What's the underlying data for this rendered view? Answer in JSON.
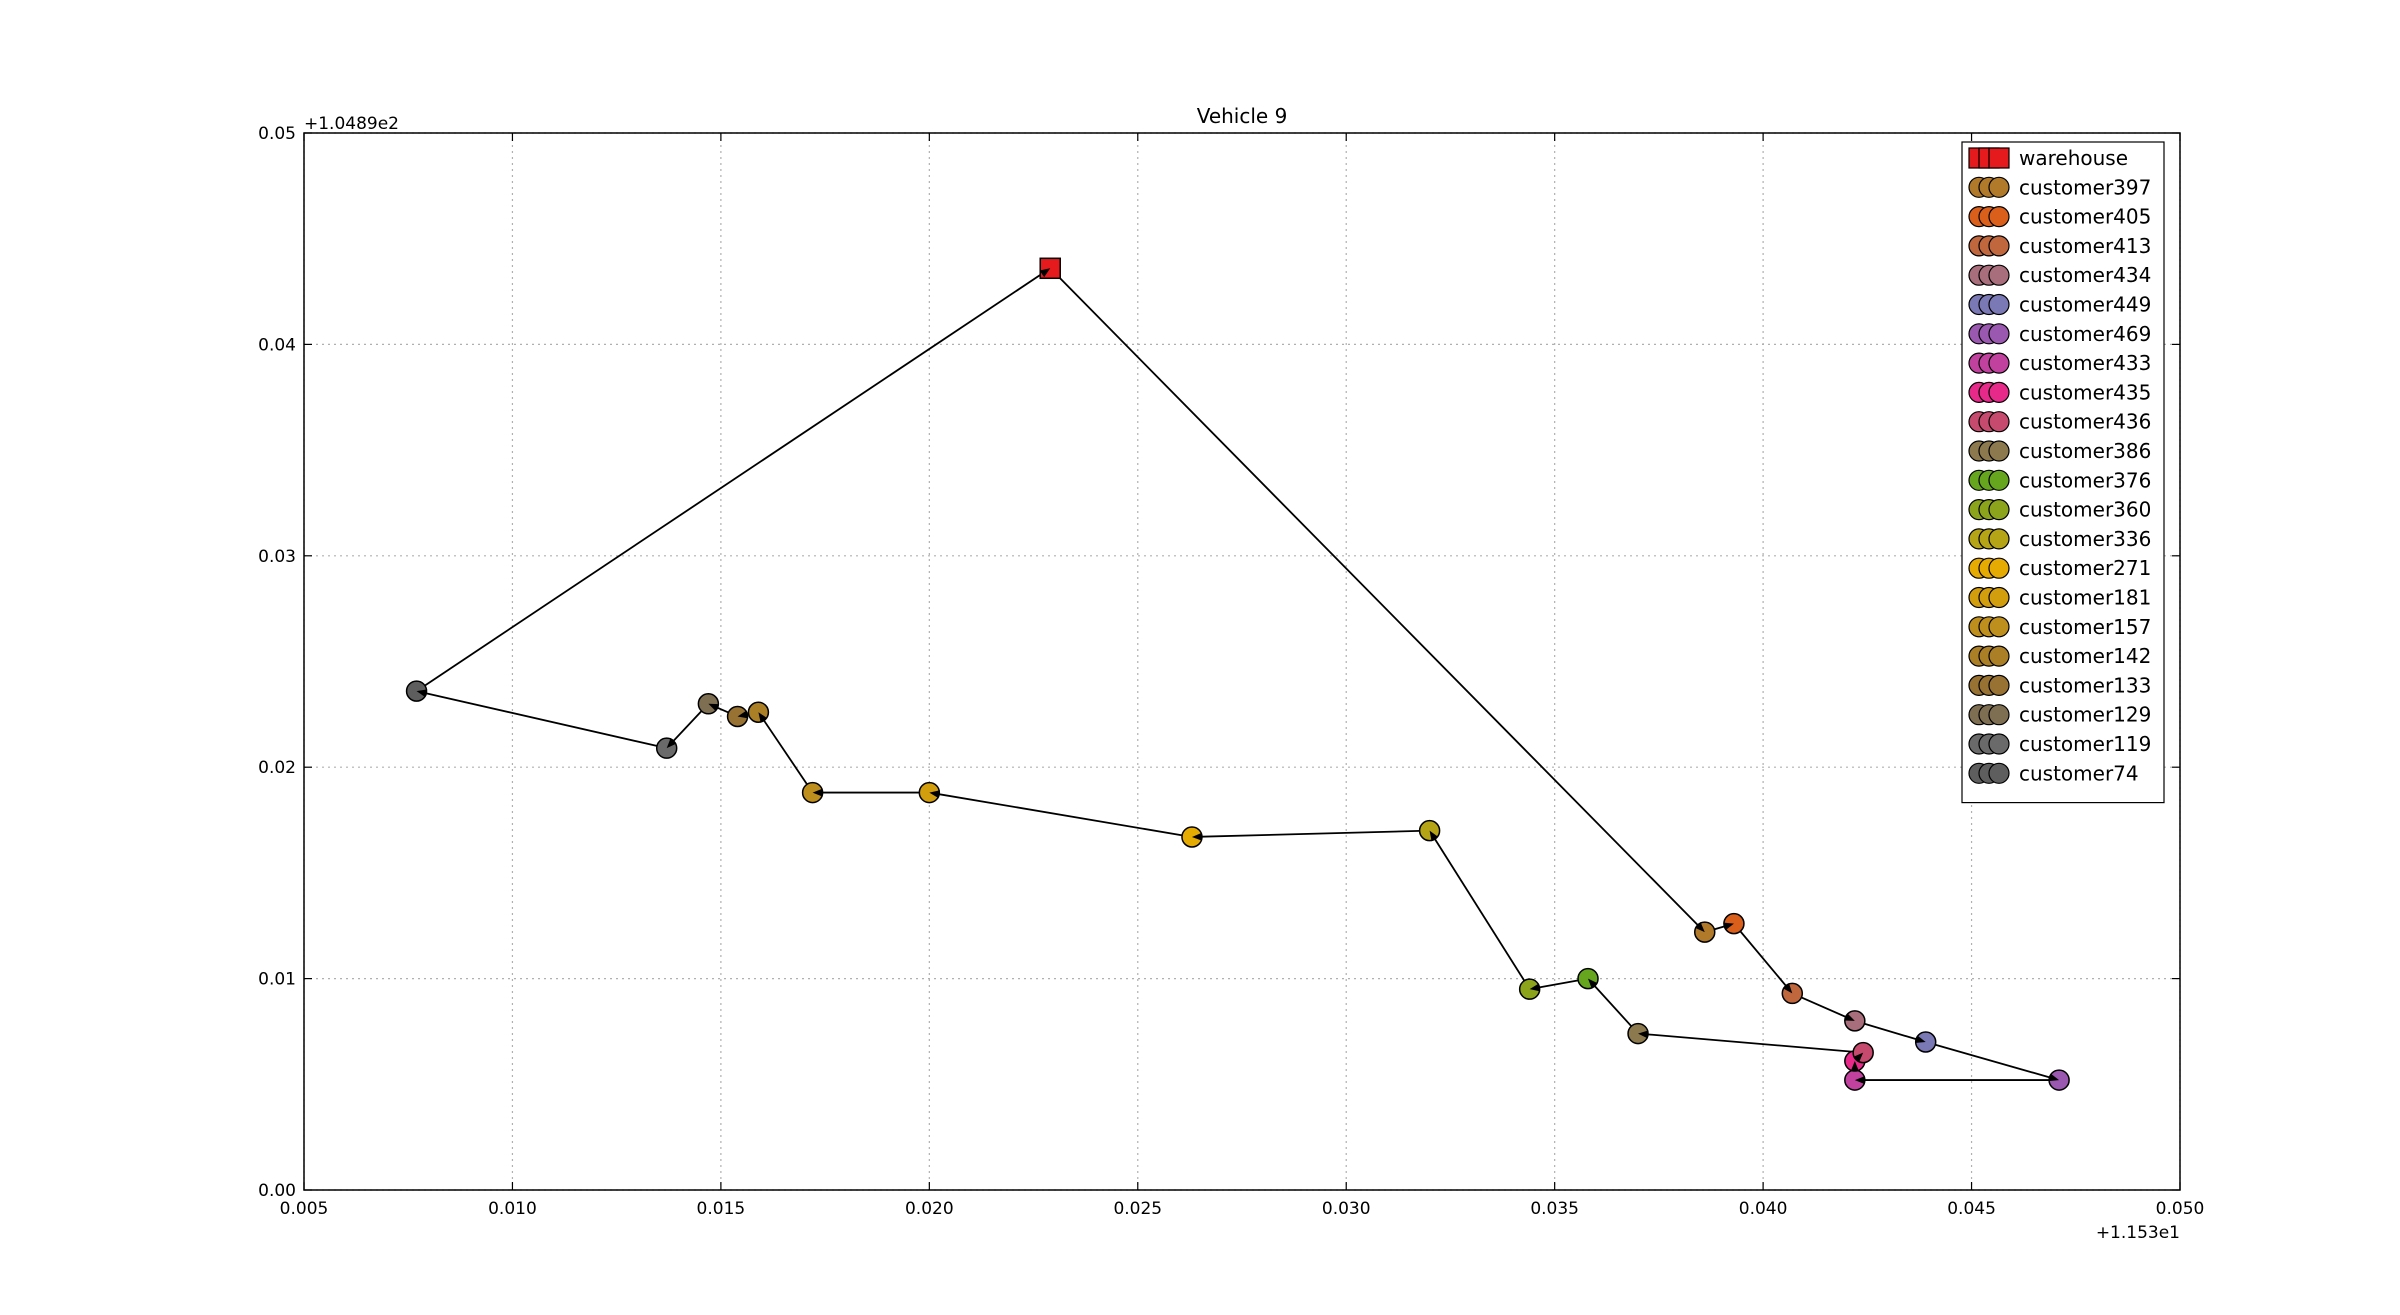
{
  "chart_data": {
    "type": "scatter",
    "title": "Vehicle 9",
    "xlabel": "",
    "ylabel": "",
    "x_offset_label": "+1.153e1",
    "y_offset_label": "+1.0489e2",
    "xlim": [
      0.005,
      0.05
    ],
    "ylim": [
      0.0,
      0.05
    ],
    "x_ticks": [
      "0.005",
      "0.010",
      "0.015",
      "0.020",
      "0.025",
      "0.030",
      "0.035",
      "0.040",
      "0.045",
      "0.050"
    ],
    "y_ticks": [
      "0.00",
      "0.01",
      "0.02",
      "0.03",
      "0.04",
      "0.05"
    ],
    "grid": true,
    "legend_position": "top-right",
    "route_color": "#000000",
    "series": [
      {
        "name": "warehouse",
        "marker": "square",
        "color": "#e41a1c",
        "x": 0.0229,
        "y": 0.0436
      },
      {
        "name": "customer397",
        "marker": "circle",
        "color": "#b07a2a",
        "x": 0.0386,
        "y": 0.0122
      },
      {
        "name": "customer405",
        "marker": "circle",
        "color": "#d95f1a",
        "x": 0.0393,
        "y": 0.0126
      },
      {
        "name": "customer413",
        "marker": "circle",
        "color": "#c0673e",
        "x": 0.0407,
        "y": 0.0093
      },
      {
        "name": "customer434",
        "marker": "circle",
        "color": "#a86e7b",
        "x": 0.0422,
        "y": 0.008
      },
      {
        "name": "customer449",
        "marker": "circle",
        "color": "#7b78b6",
        "x": 0.0439,
        "y": 0.007
      },
      {
        "name": "customer469",
        "marker": "circle",
        "color": "#9b58b0",
        "x": 0.0471,
        "y": 0.0052
      },
      {
        "name": "customer433",
        "marker": "circle",
        "color": "#c1429e",
        "x": 0.0422,
        "y": 0.0052
      },
      {
        "name": "customer435",
        "marker": "circle",
        "color": "#e7298a",
        "x": 0.0422,
        "y": 0.0061
      },
      {
        "name": "customer436",
        "marker": "circle",
        "color": "#c64a6e",
        "x": 0.0424,
        "y": 0.0065
      },
      {
        "name": "customer386",
        "marker": "circle",
        "color": "#8c7a4e",
        "x": 0.037,
        "y": 0.0074
      },
      {
        "name": "customer376",
        "marker": "circle",
        "color": "#66a61e",
        "x": 0.0358,
        "y": 0.01
      },
      {
        "name": "customer360",
        "marker": "circle",
        "color": "#8ca41c",
        "x": 0.0344,
        "y": 0.0095
      },
      {
        "name": "customer336",
        "marker": "circle",
        "color": "#b5a416",
        "x": 0.032,
        "y": 0.017
      },
      {
        "name": "customer271",
        "marker": "circle",
        "color": "#e6ab02",
        "x": 0.0263,
        "y": 0.0167
      },
      {
        "name": "customer181",
        "marker": "circle",
        "color": "#d39e0e",
        "x": 0.02,
        "y": 0.0188
      },
      {
        "name": "customer157",
        "marker": "circle",
        "color": "#bf8f1e",
        "x": 0.0172,
        "y": 0.0188
      },
      {
        "name": "customer142",
        "marker": "circle",
        "color": "#ab7f26",
        "x": 0.0159,
        "y": 0.0226
      },
      {
        "name": "customer133",
        "marker": "circle",
        "color": "#977232",
        "x": 0.0154,
        "y": 0.0224
      },
      {
        "name": "customer129",
        "marker": "circle",
        "color": "#7f6f52",
        "x": 0.0147,
        "y": 0.023
      },
      {
        "name": "customer119",
        "marker": "circle",
        "color": "#6a6a6a",
        "x": 0.0137,
        "y": 0.0209
      },
      {
        "name": "customer74",
        "marker": "circle",
        "color": "#5e5e5e",
        "x": 0.0077,
        "y": 0.0236
      }
    ],
    "route": [
      [
        0.0229,
        0.0436
      ],
      [
        0.0386,
        0.0122
      ],
      [
        0.0393,
        0.0126
      ],
      [
        0.0407,
        0.0093
      ],
      [
        0.0422,
        0.008
      ],
      [
        0.0439,
        0.007
      ],
      [
        0.0471,
        0.0052
      ],
      [
        0.0422,
        0.0052
      ],
      [
        0.0422,
        0.0061
      ],
      [
        0.0424,
        0.0065
      ],
      [
        0.037,
        0.0074
      ],
      [
        0.0358,
        0.01
      ],
      [
        0.0344,
        0.0095
      ],
      [
        0.032,
        0.017
      ],
      [
        0.0263,
        0.0167
      ],
      [
        0.02,
        0.0188
      ],
      [
        0.0172,
        0.0188
      ],
      [
        0.0159,
        0.0226
      ],
      [
        0.0154,
        0.0224
      ],
      [
        0.0147,
        0.023
      ],
      [
        0.0137,
        0.0209
      ],
      [
        0.0077,
        0.0236
      ],
      [
        0.0229,
        0.0436
      ]
    ]
  }
}
